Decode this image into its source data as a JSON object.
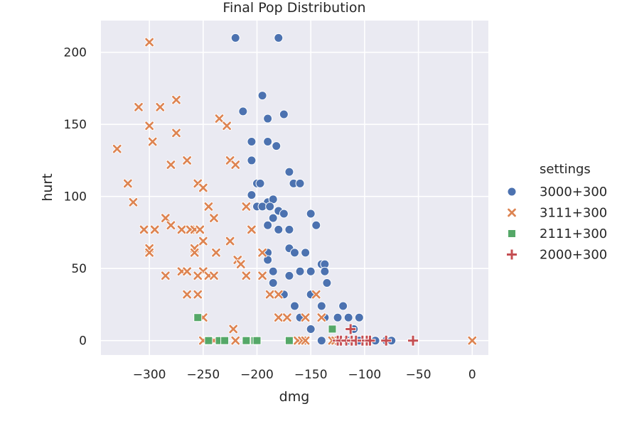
{
  "chart_data": {
    "type": "scatter",
    "title": "Final Pop Distribution",
    "xlabel": "dmg",
    "ylabel": "hurt",
    "xlim": [
      -345,
      15
    ],
    "ylim": [
      -10,
      222
    ],
    "xticks": [
      -300,
      -250,
      -200,
      -150,
      -100,
      -50,
      0
    ],
    "yticks": [
      0,
      50,
      100,
      150,
      200
    ],
    "xtick_labels": [
      "−300",
      "−250",
      "−200",
      "−150",
      "−100",
      "−50",
      "0"
    ],
    "ytick_labels": [
      "0",
      "50",
      "100",
      "150",
      "200"
    ],
    "grid": true,
    "legend": {
      "title": "settings",
      "placement": "right"
    },
    "series": [
      {
        "name": "3000+300",
        "marker": "circle",
        "color": "#4c72b0",
        "points": [
          [
            -220,
            210
          ],
          [
            -180,
            210
          ],
          [
            -195,
            170
          ],
          [
            -213,
            159
          ],
          [
            -190,
            154
          ],
          [
            -175,
            157
          ],
          [
            -205,
            138
          ],
          [
            -190,
            138
          ],
          [
            -182,
            135
          ],
          [
            -205,
            125
          ],
          [
            -170,
            117
          ],
          [
            -200,
            109
          ],
          [
            -197,
            109
          ],
          [
            -166,
            109
          ],
          [
            -160,
            109
          ],
          [
            -205,
            101
          ],
          [
            -190,
            96
          ],
          [
            -185,
            98
          ],
          [
            -200,
            93
          ],
          [
            -195,
            93
          ],
          [
            -188,
            93
          ],
          [
            -180,
            90
          ],
          [
            -175,
            88
          ],
          [
            -150,
            88
          ],
          [
            -185,
            85
          ],
          [
            -145,
            80
          ],
          [
            -190,
            80
          ],
          [
            -180,
            77
          ],
          [
            -170,
            77
          ],
          [
            -170,
            64
          ],
          [
            -165,
            61
          ],
          [
            -155,
            61
          ],
          [
            -190,
            61
          ],
          [
            -190,
            56
          ],
          [
            -140,
            53
          ],
          [
            -137,
            53
          ],
          [
            -185,
            48
          ],
          [
            -160,
            48
          ],
          [
            -150,
            48
          ],
          [
            -137,
            48
          ],
          [
            -170,
            45
          ],
          [
            -185,
            40
          ],
          [
            -135,
            40
          ],
          [
            -175,
            32
          ],
          [
            -150,
            32
          ],
          [
            -165,
            24
          ],
          [
            -140,
            24
          ],
          [
            -120,
            24
          ],
          [
            -160,
            16
          ],
          [
            -137,
            16
          ],
          [
            -125,
            16
          ],
          [
            -115,
            16
          ],
          [
            -105,
            16
          ],
          [
            -150,
            8
          ],
          [
            -110,
            8
          ],
          [
            -140,
            0
          ],
          [
            -125,
            0
          ],
          [
            -115,
            0
          ],
          [
            -105,
            0
          ],
          [
            -90,
            0
          ],
          [
            -80,
            0
          ],
          [
            -75,
            0
          ]
        ]
      },
      {
        "name": "3111+300",
        "marker": "x",
        "color": "#dd8452",
        "points": [
          [
            -300,
            207
          ],
          [
            -275,
            167
          ],
          [
            -310,
            162
          ],
          [
            -290,
            162
          ],
          [
            -235,
            154
          ],
          [
            -300,
            149
          ],
          [
            -228,
            149
          ],
          [
            -275,
            144
          ],
          [
            -297,
            138
          ],
          [
            -330,
            133
          ],
          [
            -225,
            125
          ],
          [
            -265,
            125
          ],
          [
            -280,
            122
          ],
          [
            -220,
            122
          ],
          [
            -320,
            109
          ],
          [
            -255,
            109
          ],
          [
            -250,
            106
          ],
          [
            -315,
            96
          ],
          [
            -245,
            93
          ],
          [
            -210,
            93
          ],
          [
            -240,
            85
          ],
          [
            -285,
            85
          ],
          [
            -280,
            80
          ],
          [
            -305,
            77
          ],
          [
            -295,
            77
          ],
          [
            -270,
            77
          ],
          [
            -262,
            77
          ],
          [
            -258,
            77
          ],
          [
            -253,
            77
          ],
          [
            -205,
            77
          ],
          [
            -225,
            69
          ],
          [
            -250,
            69
          ],
          [
            -300,
            64
          ],
          [
            -258,
            64
          ],
          [
            -300,
            61
          ],
          [
            -258,
            61
          ],
          [
            -238,
            61
          ],
          [
            -195,
            61
          ],
          [
            -218,
            56
          ],
          [
            -215,
            53
          ],
          [
            -270,
            48
          ],
          [
            -265,
            48
          ],
          [
            -250,
            48
          ],
          [
            -285,
            45
          ],
          [
            -255,
            45
          ],
          [
            -245,
            45
          ],
          [
            -240,
            45
          ],
          [
            -210,
            45
          ],
          [
            -195,
            45
          ],
          [
            -255,
            32
          ],
          [
            -265,
            32
          ],
          [
            -188,
            32
          ],
          [
            -180,
            32
          ],
          [
            -145,
            32
          ],
          [
            -250,
            16
          ],
          [
            -180,
            16
          ],
          [
            -172,
            16
          ],
          [
            -155,
            16
          ],
          [
            -140,
            16
          ],
          [
            -222,
            8
          ],
          [
            -250,
            0
          ],
          [
            -245,
            0
          ],
          [
            -240,
            0
          ],
          [
            -220,
            0
          ],
          [
            -205,
            0
          ],
          [
            -162,
            0
          ],
          [
            -158,
            0
          ],
          [
            -155,
            0
          ],
          [
            -130,
            0
          ],
          [
            -127,
            0
          ],
          [
            -115,
            0
          ],
          [
            0,
            0
          ]
        ]
      },
      {
        "name": "2111+300",
        "marker": "square",
        "color": "#55a868",
        "points": [
          [
            -255,
            16
          ],
          [
            -245,
            0
          ],
          [
            -235,
            0
          ],
          [
            -230,
            0
          ],
          [
            -210,
            0
          ],
          [
            -202,
            0
          ],
          [
            -200,
            0
          ],
          [
            -170,
            0
          ],
          [
            -130,
            8
          ]
        ]
      },
      {
        "name": "2000+300",
        "marker": "plus",
        "color": "#c44e52",
        "points": [
          [
            -113,
            8
          ],
          [
            -125,
            0
          ],
          [
            -122,
            0
          ],
          [
            -117,
            0
          ],
          [
            -112,
            0
          ],
          [
            -108,
            0
          ],
          [
            -102,
            0
          ],
          [
            -98,
            0
          ],
          [
            -95,
            0
          ],
          [
            -80,
            0
          ],
          [
            -55,
            0
          ]
        ]
      }
    ]
  }
}
